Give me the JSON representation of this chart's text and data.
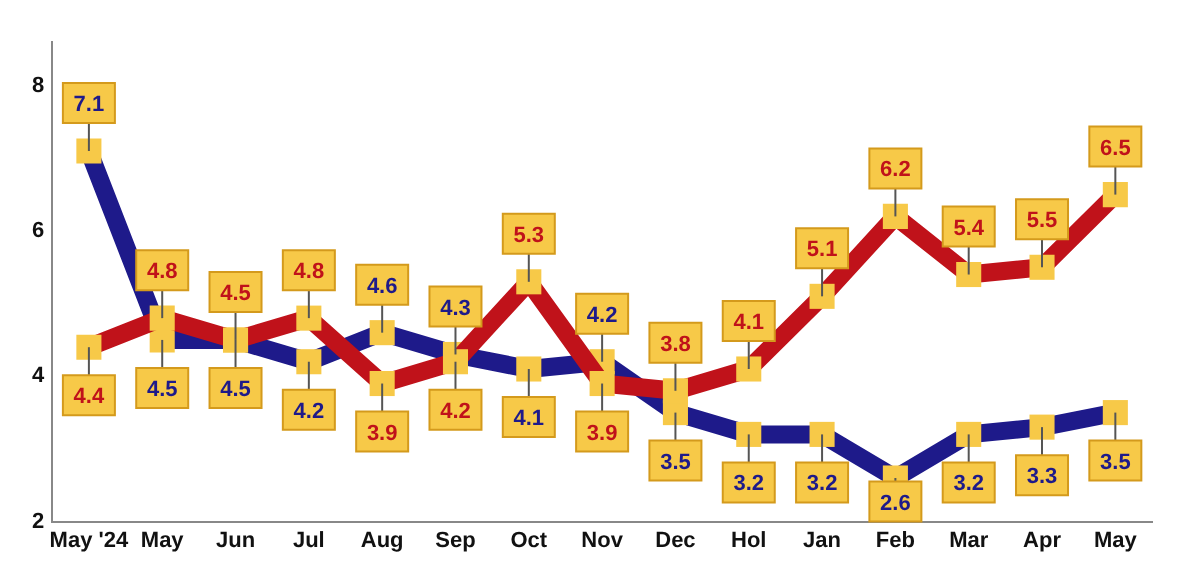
{
  "chart_data": {
    "type": "line",
    "categories": [
      "May '24",
      "May",
      "Jun",
      "Jul",
      "Aug",
      "Sep",
      "Oct",
      "Nov",
      "Dec",
      "Hol",
      "Jan",
      "Feb",
      "Mar",
      "Apr",
      "May"
    ],
    "series": [
      {
        "color": "#c0121a",
        "values": [
          4.4,
          4.8,
          4.5,
          4.8,
          3.9,
          4.2,
          5.3,
          3.9,
          3.8,
          4.1,
          5.1,
          6.2,
          5.4,
          5.5,
          6.5
        ]
      },
      {
        "color": "#1e1a8a",
        "values": [
          7.1,
          4.5,
          4.5,
          4.2,
          4.6,
          4.3,
          4.1,
          4.2,
          3.5,
          3.2,
          3.2,
          2.6,
          3.2,
          3.3,
          3.5
        ]
      }
    ],
    "ylim": [
      2,
      8.6
    ],
    "yticks": [
      2,
      4,
      6,
      8
    ],
    "marker": "square",
    "data_labels": true,
    "grid": false,
    "legend": false
  }
}
